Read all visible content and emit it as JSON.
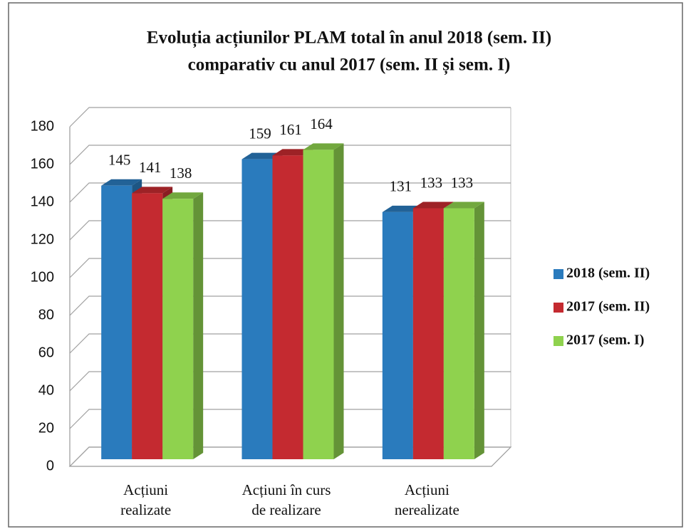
{
  "chart_data": {
    "type": "bar3d",
    "title": [
      "Evoluția acțiunilor PLAM total în anul 2018 (sem. II)",
      "comparativ cu anul 2017 (sem. II și sem. I)"
    ],
    "categories": [
      [
        "Acțiuni",
        "realizate"
      ],
      [
        "Acțiuni în curs",
        "de realizare"
      ],
      [
        "Acțiuni",
        "nerealizate"
      ]
    ],
    "series": [
      {
        "name": "2018 (sem. II)",
        "color": "#2a7bbd",
        "values": [
          145,
          159,
          131
        ]
      },
      {
        "name": "2017 (sem. II)",
        "color": "#c42a30",
        "values": [
          141,
          161,
          133
        ]
      },
      {
        "name": "2017 (sem. I)",
        "color": "#8fd24e",
        "values": [
          138,
          164,
          133
        ]
      }
    ],
    "ylim": [
      0,
      180
    ],
    "yticks": [
      0,
      20,
      40,
      60,
      80,
      100,
      120,
      140,
      160,
      180
    ],
    "grid": true,
    "legend": "right"
  }
}
